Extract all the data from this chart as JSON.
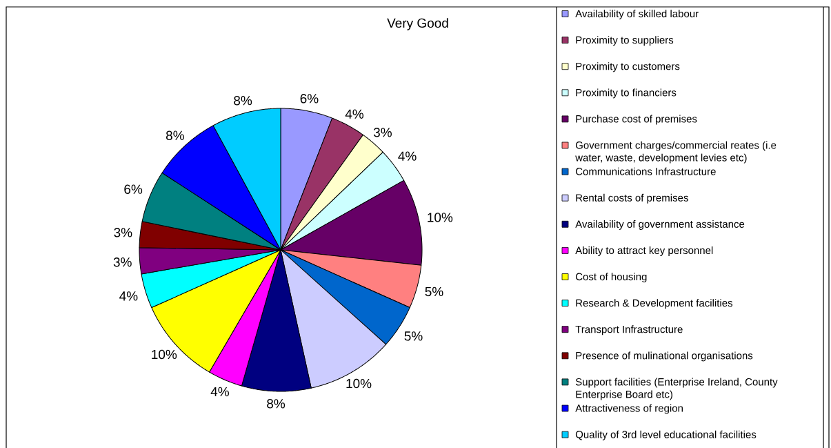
{
  "chart_data": {
    "type": "pie",
    "title": "Very Good",
    "categories": [
      "Availability of skilled labour",
      "Proximity to suppliers",
      "Proximity to customers",
      "Proximity to financiers",
      "Purchase cost of premises",
      "Government charges/commercial reates (i.e water, waste, development levies etc)",
      "Communications Infrastructure",
      "Rental costs of premises",
      "Availability of government assistance",
      "Ability to attract key personnel",
      "Cost of housing",
      "Research & Development facilities",
      "Transport Infrastructure",
      "Presence of mulinational organisations",
      "Support facilities (Enterprise Ireland, County Enterprise Board etc)",
      "Attractiveness of region",
      "Quality of 3rd level educational facilities"
    ],
    "values": [
      6,
      4,
      3,
      4,
      10,
      5,
      5,
      10,
      8,
      4,
      10,
      4,
      3,
      3,
      6,
      8,
      8
    ],
    "colors": [
      "#9999ff",
      "#993366",
      "#ffffcc",
      "#ccffff",
      "#660066",
      "#ff8080",
      "#0066cc",
      "#ccccff",
      "#000080",
      "#ff00ff",
      "#ffff00",
      "#00ffff",
      "#800080",
      "#800000",
      "#008080",
      "#0000ff",
      "#00ccff"
    ],
    "value_labels": [
      "6%",
      "4%",
      "3%",
      "4%",
      "10%",
      "5%",
      "5%",
      "10%",
      "8%",
      "4%",
      "10%",
      "4%",
      "3%",
      "3%",
      "6%",
      "8%",
      "8%"
    ],
    "legend": "right"
  }
}
